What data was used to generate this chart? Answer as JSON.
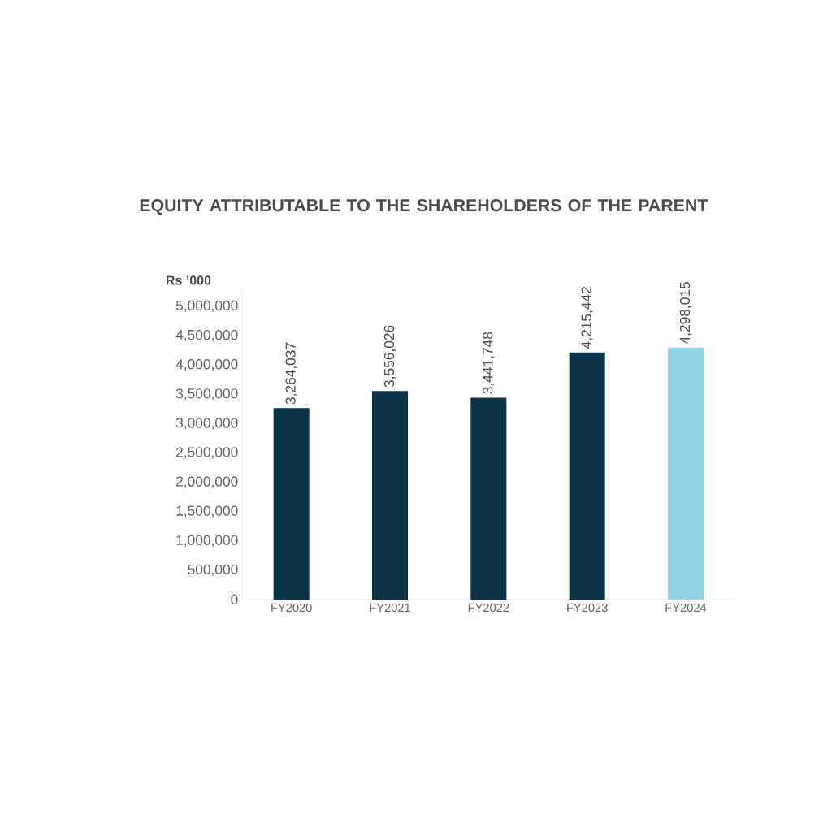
{
  "chart_data": {
    "type": "bar",
    "title": "EQUITY ATTRIBUTABLE TO THE SHAREHOLDERS OF THE PARENT",
    "ylabel": "Rs ’000",
    "categories": [
      "FY2020",
      "FY2021",
      "FY2022",
      "FY2023",
      "FY2024"
    ],
    "values": [
      3264037,
      3556026,
      3441748,
      4215442,
      4298015
    ],
    "colors": [
      "#0a3347",
      "#0a3347",
      "#0a3347",
      "#0a3347",
      "#93d3e6"
    ],
    "value_labels": [
      "3,264,037",
      "3,556,026",
      "3,441,748",
      "4,215,442",
      "4,298,015"
    ],
    "ylim": [
      0,
      5300000
    ],
    "yticks": [
      {
        "value": 0,
        "label": "0"
      },
      {
        "value": 500000,
        "label": "500,000"
      },
      {
        "value": 1000000,
        "label": "1,000,000"
      },
      {
        "value": 1500000,
        "label": "1,500,000"
      },
      {
        "value": 2000000,
        "label": "2,000,000"
      },
      {
        "value": 2500000,
        "label": "2,500,000"
      },
      {
        "value": 3000000,
        "label": "3,000,000"
      },
      {
        "value": 3500000,
        "label": "3,500,000"
      },
      {
        "value": 4000000,
        "label": "4,000,000"
      },
      {
        "value": 4500000,
        "label": "4,500,000"
      },
      {
        "value": 5000000,
        "label": "5,000,000"
      }
    ],
    "grid": false
  }
}
